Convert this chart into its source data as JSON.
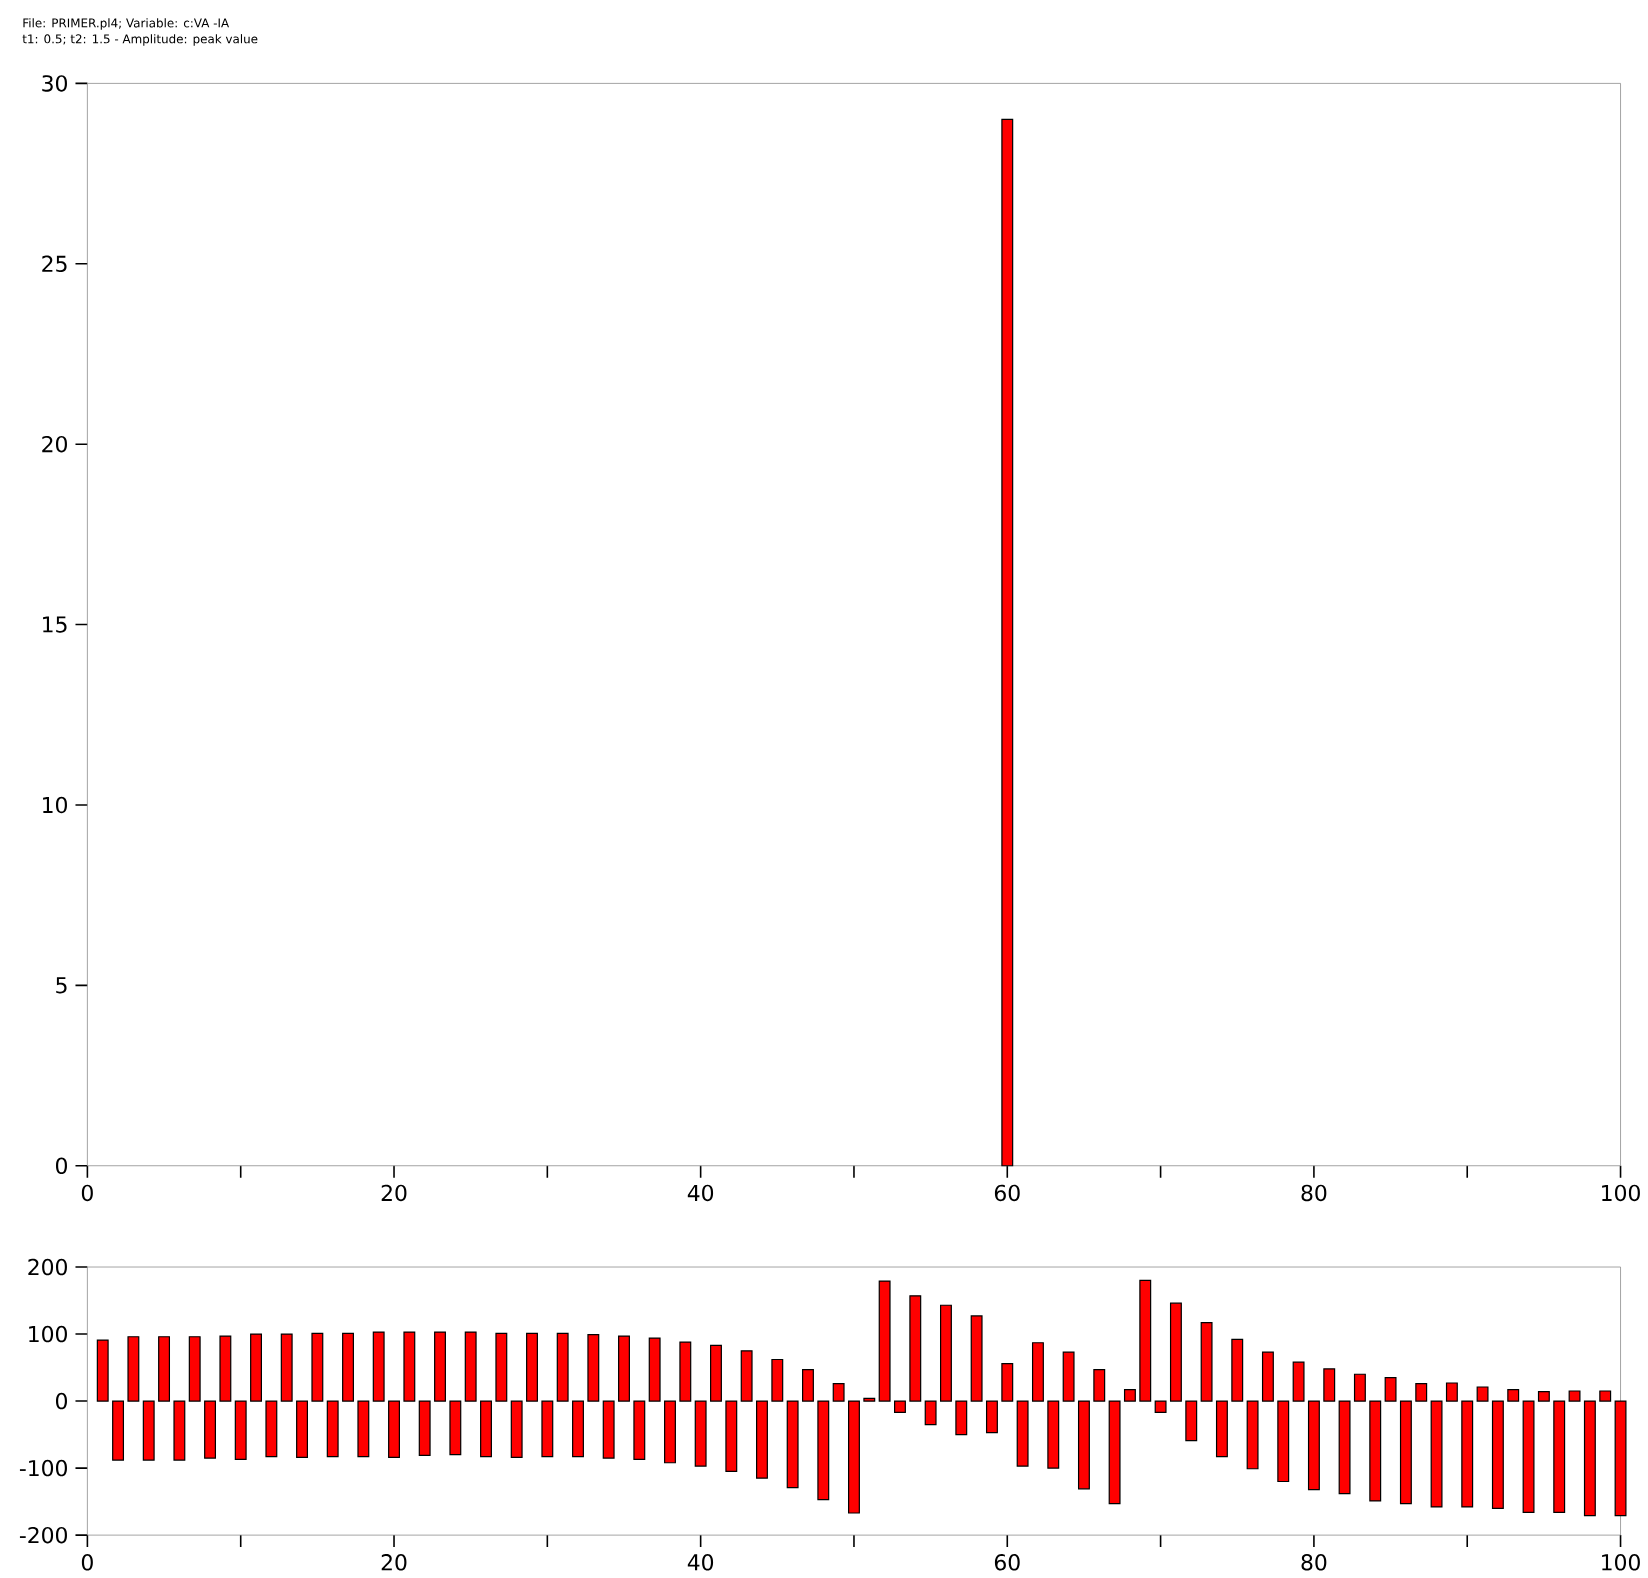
{
  "chart_data": [
    {
      "type": "bar",
      "title": "File: PRIMER.pl4; Variable: c:VA   -IA",
      "subtitle": "t1: 0.5; t2: 1.5      - Amplitude: peak value",
      "color": "#ff0000",
      "x": [
        60
      ],
      "values": [
        29
      ],
      "xlim": [
        0,
        100
      ],
      "ylim": [
        0,
        30
      ],
      "xticks": [
        0,
        {
          "value": 10,
          "label": null
        },
        20,
        {
          "value": 30,
          "label": null
        },
        40,
        {
          "value": 50,
          "label": null
        },
        60,
        {
          "value": 70,
          "label": null
        },
        80,
        {
          "value": 90,
          "label": null
        },
        100
      ],
      "yticks": [
        0,
        5,
        10,
        15,
        20,
        25,
        30
      ]
    },
    {
      "type": "bar",
      "color": "#ff0000",
      "x": [
        1,
        2,
        3,
        4,
        5,
        6,
        7,
        8,
        9,
        10,
        11,
        12,
        13,
        14,
        15,
        16,
        17,
        18,
        19,
        20,
        21,
        22,
        23,
        24,
        25,
        26,
        27,
        28,
        29,
        30,
        31,
        32,
        33,
        34,
        35,
        36,
        37,
        38,
        39,
        40,
        41,
        42,
        43,
        44,
        45,
        46,
        47,
        48,
        49,
        50,
        51,
        52,
        53,
        54,
        55,
        56,
        57,
        58,
        59,
        60,
        61,
        62,
        63,
        64,
        65,
        66,
        67,
        68,
        69,
        70,
        71,
        72,
        73,
        74,
        75,
        76,
        77,
        78,
        79,
        80,
        81,
        82,
        83,
        84,
        85,
        86,
        87,
        88,
        89,
        90,
        91,
        92,
        93,
        94,
        95,
        96,
        97,
        98,
        99,
        100
      ],
      "values": [
        91,
        -88,
        96,
        -88,
        96,
        -88,
        96,
        -85,
        97,
        -87,
        100,
        -83,
        100,
        -84,
        101,
        -83,
        101,
        -83,
        103,
        -84,
        103,
        -81,
        103,
        -80,
        103,
        -83,
        101,
        -84,
        101,
        -83,
        101,
        -83,
        99,
        -85,
        97,
        -87,
        94,
        -92,
        88,
        -97,
        83,
        -105,
        75,
        -115,
        62,
        -129,
        47,
        -147,
        26,
        -167,
        4,
        179,
        -17,
        157,
        -35,
        143,
        -50,
        127,
        -47,
        56,
        -97,
        87,
        -100,
        73,
        -131,
        47,
        -153,
        17,
        180,
        -17,
        146,
        -59,
        117,
        -83,
        92,
        -101,
        73,
        -120,
        58,
        -132,
        48,
        -138,
        40,
        -149,
        35,
        -153,
        26,
        -158,
        27,
        -158,
        21,
        -160,
        17,
        -166,
        14,
        -166,
        15,
        -171,
        15,
        -171
      ],
      "xlim": [
        0,
        100
      ],
      "ylim": [
        -200,
        200
      ],
      "xticks": [
        0,
        {
          "value": 10,
          "label": null
        },
        20,
        {
          "value": 30,
          "label": null
        },
        40,
        {
          "value": 50,
          "label": null
        },
        60,
        {
          "value": 70,
          "label": null
        },
        80,
        {
          "value": 90,
          "label": null
        },
        100
      ],
      "yticks": [
        -200,
        -100,
        0,
        100,
        200
      ]
    }
  ]
}
